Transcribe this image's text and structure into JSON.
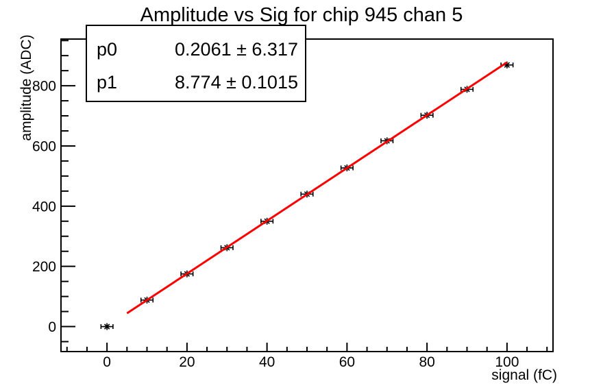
{
  "window": {
    "background": "#ffffff"
  },
  "chart_data": {
    "type": "scatter",
    "title": "Amplitude vs Sig for chip 945 chan 5",
    "xlabel": "signal (fC)",
    "ylabel": "amplitude (ADC)",
    "x": [
      0,
      10,
      20,
      30,
      40,
      50,
      60,
      70,
      80,
      90,
      100
    ],
    "y": [
      0,
      88,
      175,
      262,
      350,
      440,
      527,
      617,
      702,
      788,
      869
    ],
    "xerr": 1.5,
    "xlim": [
      -11.5,
      111.5
    ],
    "ylim": [
      -83,
      955
    ],
    "xticks": [
      0,
      20,
      40,
      60,
      80,
      100
    ],
    "yticks": [
      0,
      200,
      400,
      600,
      800
    ],
    "x_minor_step": 5,
    "y_minor_step": 50,
    "grid": false,
    "legend": "none",
    "marker_style": "asterisk-with-x-error-bars",
    "fit": {
      "type": "linear",
      "p0": 0.2061,
      "p1": 8.774,
      "x_start": 5,
      "x_end": 100
    },
    "colors": {
      "fit_line": "#ff0000",
      "marker": "#000000",
      "axis": "#000000",
      "background": "#ffffff"
    }
  },
  "stats_box": {
    "rows": [
      {
        "label": "p0",
        "value": "0.2061 ± 6.317"
      },
      {
        "label": "p1",
        "value": "8.774 ± 0.1015"
      }
    ]
  }
}
